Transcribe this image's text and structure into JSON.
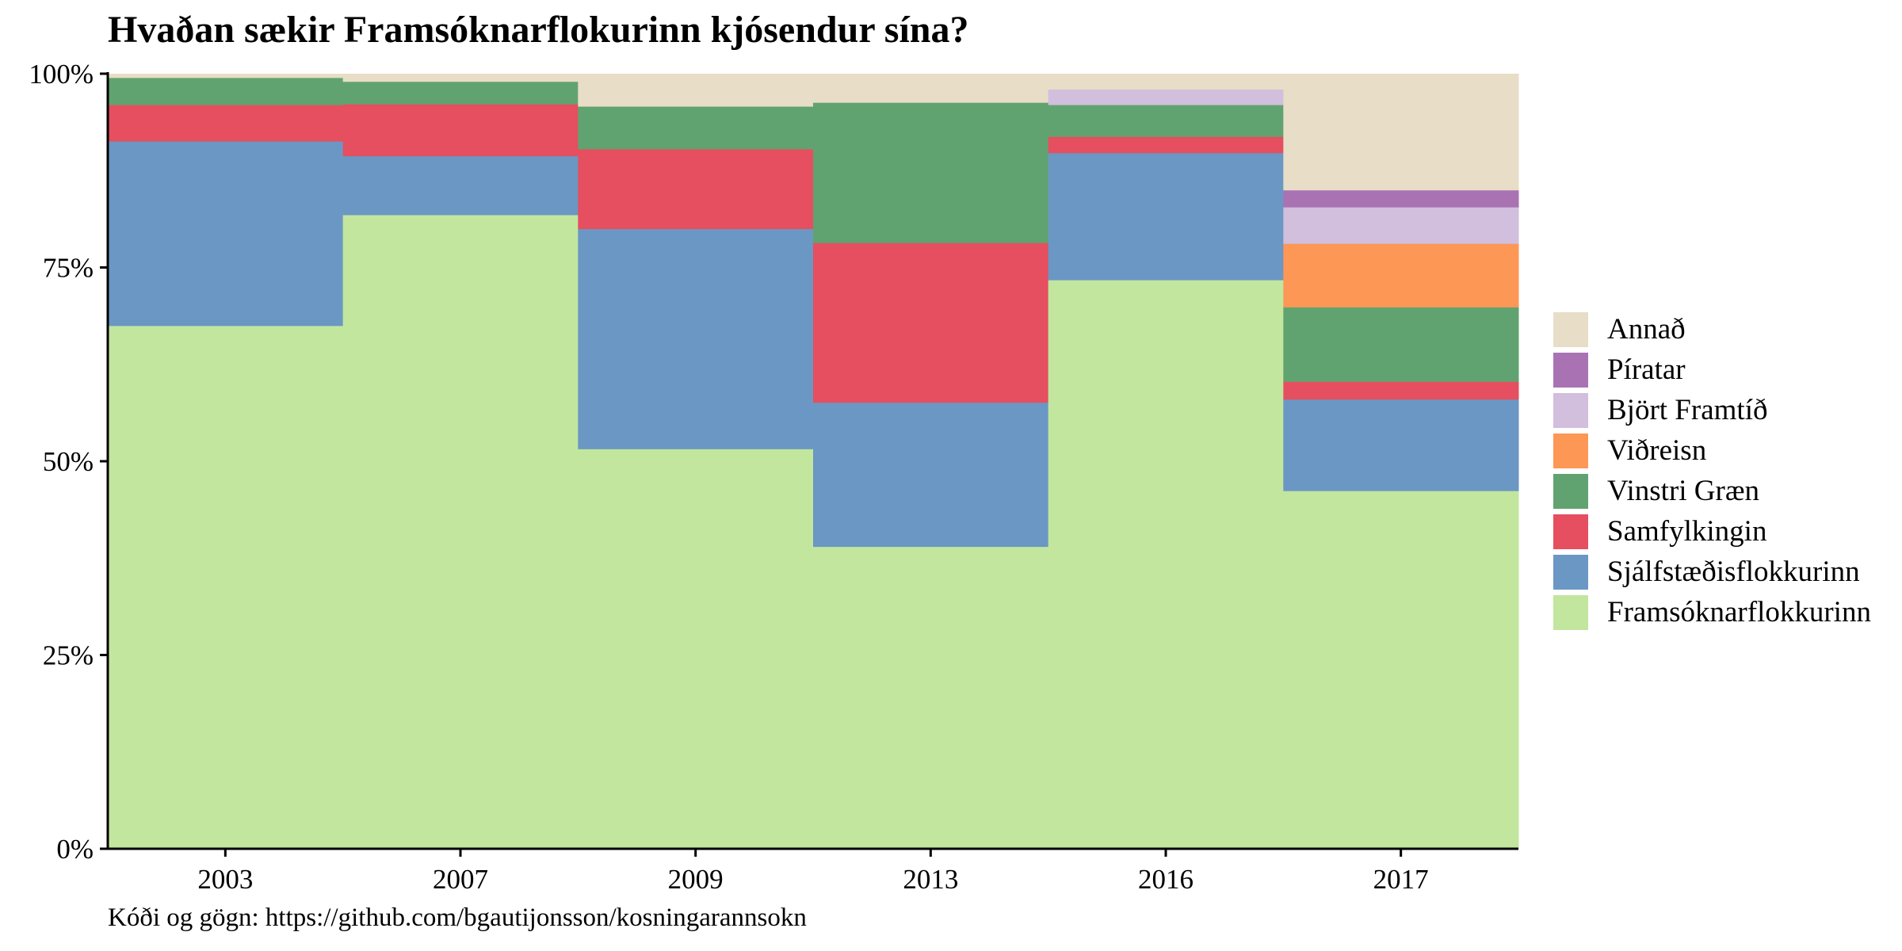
{
  "chart_data": {
    "type": "bar",
    "title": "Hvaðan sækir Framsóknarflokurinn kjósendur sína?",
    "caption": "Kóði og gögn: https://github.com/bgautijonsson/kosningarannsokn",
    "xlabel": "",
    "ylabel": "",
    "ylim": [
      0,
      100
    ],
    "y_ticks": [
      "0%",
      "25%",
      "50%",
      "75%",
      "100%"
    ],
    "y_tick_values": [
      0,
      25,
      50,
      75,
      100
    ],
    "grid": false,
    "legend_position": "right",
    "stacked": true,
    "categories": [
      "2003",
      "2007",
      "2009",
      "2013",
      "2016",
      "2017"
    ],
    "series": [
      {
        "name": "Framsóknarflokkurinn",
        "color": "#c2e69e",
        "values": [
          67.5,
          81.8,
          51.6,
          39.0,
          73.4,
          46.2
        ]
      },
      {
        "name": "Sjálfstæðisflokkurinn",
        "color": "#6b97c4",
        "values": [
          23.8,
          7.6,
          28.4,
          18.6,
          16.4,
          11.8
        ]
      },
      {
        "name": "Samfylkingin",
        "color": "#e54f5f",
        "values": [
          4.7,
          6.7,
          10.3,
          20.6,
          2.1,
          2.3
        ]
      },
      {
        "name": "Vinstri Græn",
        "color": "#61a370",
        "values": [
          3.5,
          2.9,
          5.5,
          18.1,
          4.1,
          9.6
        ]
      },
      {
        "name": "Viðreisn",
        "color": "#fd9755",
        "values": [
          0,
          0,
          0,
          0,
          0,
          8.2
        ]
      },
      {
        "name": "Björt Framtíð",
        "color": "#d2bedd",
        "values": [
          0,
          0,
          0,
          0,
          2.0,
          4.7
        ]
      },
      {
        "name": "Píratar",
        "color": "#a973b3",
        "values": [
          0,
          0,
          0,
          0,
          0,
          2.2
        ]
      },
      {
        "name": "Annað",
        "color": "#e8ddc7",
        "values": [
          0.5,
          1.0,
          4.2,
          3.7,
          2.0,
          15.0
        ]
      }
    ]
  }
}
